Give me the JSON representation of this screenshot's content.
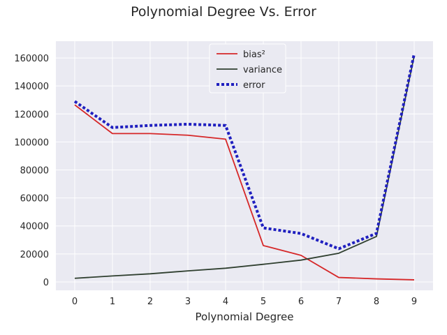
{
  "chart_data": {
    "type": "line",
    "title": "Polynomial Degree Vs. Error",
    "xlabel": "Polynomial Degree",
    "ylabel": "",
    "x": [
      0,
      1,
      2,
      3,
      4,
      5,
      6,
      7,
      8,
      9
    ],
    "xlim": [
      -0.5,
      9.5
    ],
    "ylim": [
      -6000,
      172000
    ],
    "xticks": [
      "0",
      "1",
      "2",
      "3",
      "4",
      "5",
      "6",
      "7",
      "8",
      "9"
    ],
    "yticks": [
      "0",
      "20000",
      "40000",
      "60000",
      "80000",
      "100000",
      "120000",
      "140000",
      "160000"
    ],
    "ytick_values": [
      0,
      20000,
      40000,
      60000,
      80000,
      100000,
      120000,
      140000,
      160000
    ],
    "grid": true,
    "legend_position": "top-center",
    "series": [
      {
        "name": "bias²",
        "color": "#d62728",
        "style": "solid",
        "values": [
          126500,
          106000,
          106000,
          104800,
          102000,
          26000,
          19000,
          3200,
          2200,
          1500
        ]
      },
      {
        "name": "variance",
        "color": "#2f3f2f",
        "style": "solid",
        "values": [
          2600,
          4300,
          5800,
          7900,
          9800,
          12600,
          15600,
          20500,
          32500,
          161500
        ]
      },
      {
        "name": "error",
        "color": "#1f1fbf",
        "style": "dotted",
        "values": [
          129000,
          110300,
          111800,
          112700,
          111800,
          38600,
          34600,
          23700,
          34700,
          163000
        ]
      }
    ]
  }
}
